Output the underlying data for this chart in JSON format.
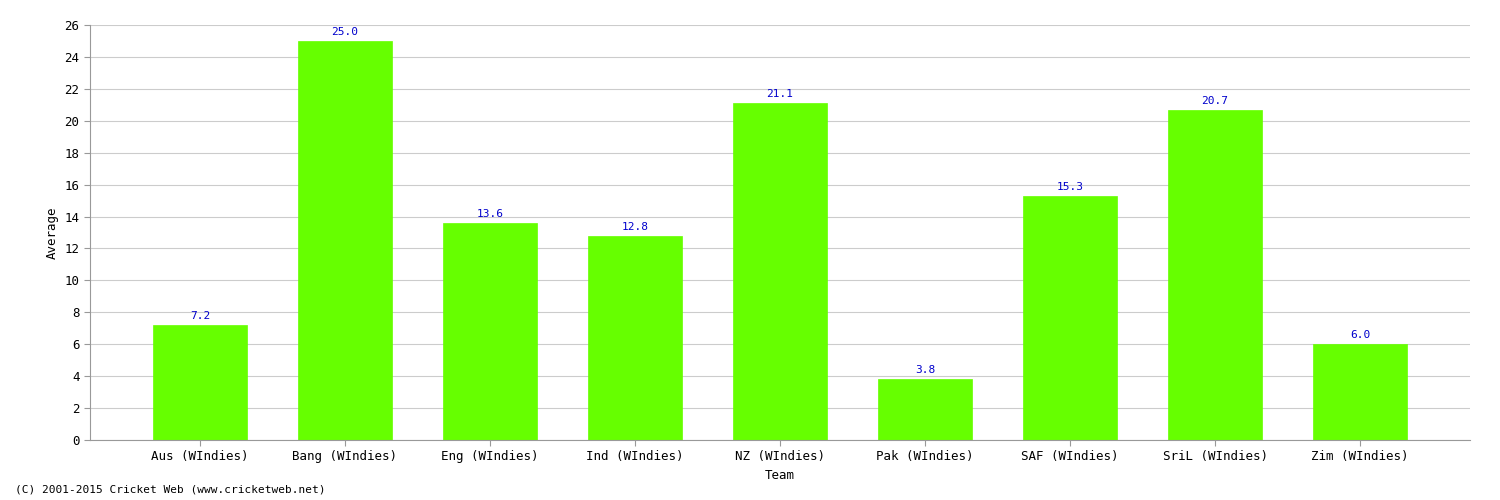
{
  "title": "",
  "categories": [
    "Aus (WIndies)",
    "Bang (WIndies)",
    "Eng (WIndies)",
    "Ind (WIndies)",
    "NZ (WIndies)",
    "Pak (WIndies)",
    "SAF (WIndies)",
    "SriL (WIndies)",
    "Zim (WIndies)"
  ],
  "values": [
    7.2,
    25.0,
    13.6,
    12.8,
    21.1,
    3.8,
    15.3,
    20.7,
    6.0
  ],
  "bar_color": "#66ff00",
  "bar_edge_color": "#66ff00",
  "label_color": "#0000cc",
  "xlabel": "Team",
  "ylabel": "Average",
  "ylim": [
    0,
    26
  ],
  "yticks": [
    0,
    2,
    4,
    6,
    8,
    10,
    12,
    14,
    16,
    18,
    20,
    22,
    24,
    26
  ],
  "grid_color": "#cccccc",
  "background_color": "#ffffff",
  "footer": "(C) 2001-2015 Cricket Web (www.cricketweb.net)",
  "axis_label_fontsize": 9,
  "tick_label_fontsize": 9,
  "bar_label_fontsize": 8,
  "bar_width": 0.65
}
